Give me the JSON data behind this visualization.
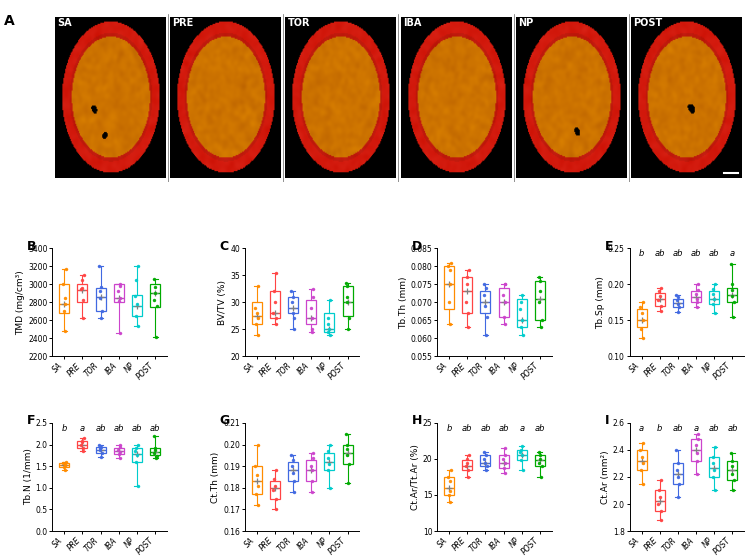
{
  "groups": [
    "SA",
    "PRE",
    "TOR",
    "IBA",
    "NP",
    "POST"
  ],
  "colors": [
    "#FF8C00",
    "#FF4444",
    "#4169E1",
    "#CC44CC",
    "#00CCCC",
    "#00AA00"
  ],
  "panel_A_labels": [
    "SA",
    "PRE",
    "TOR",
    "IBA",
    "NP",
    "POST"
  ],
  "panel_B": {
    "title": "B",
    "ylabel": "TMD (mg/cm³)",
    "ylim": [
      2200,
      3400
    ],
    "yticks": [
      2200,
      2400,
      2600,
      2800,
      3000,
      3200,
      3400
    ],
    "boxes": [
      {
        "q1": 2680,
        "median": 2780,
        "q3": 3000,
        "whislo": 2480,
        "whishi": 3170,
        "mean": 2780
      },
      {
        "q1": 2800,
        "median": 2940,
        "q3": 3000,
        "whislo": 2620,
        "whishi": 3100,
        "mean": 2940
      },
      {
        "q1": 2700,
        "median": 2860,
        "q3": 2960,
        "whislo": 2620,
        "whishi": 3200,
        "mean": 2860
      },
      {
        "q1": 2800,
        "median": 2850,
        "q3": 3000,
        "whislo": 2460,
        "whishi": 3000,
        "mean": 2850
      },
      {
        "q1": 2650,
        "median": 2760,
        "q3": 2880,
        "whislo": 2540,
        "whishi": 3200,
        "mean": 2760
      },
      {
        "q1": 2750,
        "median": 2900,
        "q3": 3000,
        "whislo": 2420,
        "whishi": 3060,
        "mean": 2900
      }
    ],
    "sig": [
      "",
      "",
      "",
      "",
      "",
      ""
    ],
    "pts": [
      [
        2480,
        2700,
        2780,
        2850,
        3000,
        3170
      ],
      [
        2620,
        2820,
        2950,
        2960,
        3050,
        3100
      ],
      [
        2630,
        2700,
        2850,
        2920,
        2970,
        3200
      ],
      [
        2460,
        2810,
        2850,
        2920,
        2980,
        3000
      ],
      [
        2540,
        2650,
        2780,
        2870,
        3050,
        3200
      ],
      [
        2420,
        2760,
        2830,
        2900,
        2970,
        3060
      ]
    ]
  },
  "panel_C": {
    "title": "C",
    "ylabel": "BV/TV (%)",
    "ylim": [
      20,
      40
    ],
    "yticks": [
      20,
      25,
      30,
      35,
      40
    ],
    "boxes": [
      {
        "q1": 26,
        "median": 27.5,
        "q3": 30,
        "whislo": 24,
        "whishi": 33,
        "mean": 27.5
      },
      {
        "q1": 27,
        "median": 28,
        "q3": 32,
        "whislo": 26,
        "whishi": 35.5,
        "mean": 28
      },
      {
        "q1": 28,
        "median": 29,
        "q3": 31,
        "whislo": 25,
        "whishi": 32,
        "mean": 29
      },
      {
        "q1": 26,
        "median": 27,
        "q3": 30.5,
        "whislo": 24.5,
        "whishi": 32.5,
        "mean": 27
      },
      {
        "q1": 24.5,
        "median": 25,
        "q3": 28,
        "whislo": 24,
        "whishi": 30.5,
        "mean": 25
      },
      {
        "q1": 27.5,
        "median": 30,
        "q3": 33,
        "whislo": 25,
        "whishi": 33.5,
        "mean": 30
      }
    ],
    "sig": [
      "",
      "",
      "",
      "",
      "",
      ""
    ],
    "pts": [
      [
        24,
        26,
        27,
        28,
        29,
        33
      ],
      [
        26,
        27,
        28,
        30,
        32,
        35.5
      ],
      [
        25,
        27,
        28,
        30,
        31,
        32
      ],
      [
        24.5,
        25,
        27,
        29,
        31,
        32.5
      ],
      [
        24,
        24.5,
        25,
        26,
        27,
        30.5
      ],
      [
        25,
        27,
        30,
        31,
        33,
        33.5
      ]
    ]
  },
  "panel_D": {
    "title": "D",
    "ylabel": "Tb.Th (mm)",
    "ylim": [
      0.055,
      0.085
    ],
    "yticks": [
      0.055,
      0.06,
      0.065,
      0.07,
      0.075,
      0.08,
      0.085
    ],
    "boxes": [
      {
        "q1": 0.068,
        "median": 0.075,
        "q3": 0.08,
        "whislo": 0.064,
        "whishi": 0.081,
        "mean": 0.075
      },
      {
        "q1": 0.067,
        "median": 0.073,
        "q3": 0.077,
        "whislo": 0.063,
        "whishi": 0.079,
        "mean": 0.073
      },
      {
        "q1": 0.067,
        "median": 0.07,
        "q3": 0.073,
        "whislo": 0.061,
        "whishi": 0.075,
        "mean": 0.07
      },
      {
        "q1": 0.066,
        "median": 0.07,
        "q3": 0.074,
        "whislo": 0.064,
        "whishi": 0.075,
        "mean": 0.07
      },
      {
        "q1": 0.063,
        "median": 0.065,
        "q3": 0.071,
        "whislo": 0.061,
        "whishi": 0.072,
        "mean": 0.065
      },
      {
        "q1": 0.065,
        "median": 0.071,
        "q3": 0.076,
        "whislo": 0.063,
        "whishi": 0.077,
        "mean": 0.071
      }
    ],
    "sig": [
      "",
      "",
      "",
      "",
      "",
      ""
    ],
    "pts": [
      [
        0.064,
        0.07,
        0.075,
        0.079,
        0.08,
        0.081
      ],
      [
        0.063,
        0.067,
        0.07,
        0.075,
        0.077,
        0.079
      ],
      [
        0.061,
        0.066,
        0.069,
        0.072,
        0.074,
        0.075
      ],
      [
        0.064,
        0.066,
        0.07,
        0.072,
        0.075,
        0.075
      ],
      [
        0.061,
        0.063,
        0.065,
        0.068,
        0.07,
        0.072
      ],
      [
        0.063,
        0.065,
        0.07,
        0.073,
        0.076,
        0.077
      ]
    ]
  },
  "panel_E": {
    "title": "E",
    "ylabel": "Tb.Sp (mm)",
    "ylim": [
      0.1,
      0.25
    ],
    "yticks": [
      0.1,
      0.15,
      0.2,
      0.25
    ],
    "boxes": [
      {
        "q1": 0.14,
        "median": 0.15,
        "q3": 0.165,
        "whislo": 0.125,
        "whishi": 0.175,
        "mean": 0.15
      },
      {
        "q1": 0.17,
        "median": 0.18,
        "q3": 0.188,
        "whislo": 0.163,
        "whishi": 0.195,
        "mean": 0.18
      },
      {
        "q1": 0.168,
        "median": 0.174,
        "q3": 0.18,
        "whislo": 0.162,
        "whishi": 0.185,
        "mean": 0.174
      },
      {
        "q1": 0.175,
        "median": 0.182,
        "q3": 0.19,
        "whislo": 0.168,
        "whishi": 0.2,
        "mean": 0.182
      },
      {
        "q1": 0.172,
        "median": 0.18,
        "q3": 0.19,
        "whislo": 0.16,
        "whishi": 0.2,
        "mean": 0.18
      },
      {
        "q1": 0.175,
        "median": 0.185,
        "q3": 0.195,
        "whislo": 0.155,
        "whishi": 0.228,
        "mean": 0.185
      }
    ],
    "sig": [
      "b",
      "ab",
      "ab",
      "ab",
      "ab",
      "a"
    ],
    "pts": [
      [
        0.125,
        0.138,
        0.15,
        0.16,
        0.168,
        0.175
      ],
      [
        0.163,
        0.17,
        0.178,
        0.183,
        0.19,
        0.195
      ],
      [
        0.162,
        0.168,
        0.173,
        0.178,
        0.182,
        0.185
      ],
      [
        0.168,
        0.175,
        0.18,
        0.187,
        0.192,
        0.2
      ],
      [
        0.16,
        0.172,
        0.18,
        0.187,
        0.193,
        0.2
      ],
      [
        0.155,
        0.175,
        0.183,
        0.192,
        0.2,
        0.228
      ]
    ]
  },
  "panel_F": {
    "title": "F",
    "ylabel": "Tb.N (1/mm)",
    "ylim": [
      0.0,
      2.5
    ],
    "yticks": [
      0.0,
      0.5,
      1.0,
      1.5,
      2.0,
      2.5
    ],
    "boxes": [
      {
        "q1": 1.47,
        "median": 1.52,
        "q3": 1.57,
        "whislo": 1.42,
        "whishi": 1.6,
        "mean": 1.52
      },
      {
        "q1": 1.92,
        "median": 2.0,
        "q3": 2.08,
        "whislo": 1.85,
        "whishi": 2.15,
        "mean": 2.0
      },
      {
        "q1": 1.8,
        "median": 1.88,
        "q3": 1.94,
        "whislo": 1.72,
        "whishi": 2.0,
        "mean": 1.88
      },
      {
        "q1": 1.78,
        "median": 1.85,
        "q3": 1.93,
        "whislo": 1.7,
        "whishi": 1.98,
        "mean": 1.85
      },
      {
        "q1": 1.6,
        "median": 1.78,
        "q3": 1.92,
        "whislo": 1.05,
        "whishi": 1.98,
        "mean": 1.78
      },
      {
        "q1": 1.75,
        "median": 1.82,
        "q3": 1.92,
        "whislo": 1.68,
        "whishi": 2.2,
        "mean": 1.82
      }
    ],
    "sig": [
      "b",
      "a",
      "ab",
      "ab",
      "ab",
      "ab"
    ],
    "pts": [
      [
        1.42,
        1.47,
        1.5,
        1.54,
        1.57,
        1.6
      ],
      [
        1.85,
        1.93,
        2.0,
        2.05,
        2.08,
        2.15
      ],
      [
        1.72,
        1.8,
        1.87,
        1.91,
        1.95,
        2.0
      ],
      [
        1.7,
        1.78,
        1.83,
        1.88,
        1.95,
        1.98
      ],
      [
        1.05,
        1.6,
        1.75,
        1.85,
        1.93,
        1.98
      ],
      [
        1.68,
        1.74,
        1.8,
        1.87,
        1.93,
        2.2
      ]
    ]
  },
  "panel_G": {
    "title": "G",
    "ylabel": "Ct.Th (mm)",
    "ylim": [
      0.16,
      0.21
    ],
    "yticks": [
      0.16,
      0.17,
      0.18,
      0.19,
      0.2,
      0.21
    ],
    "boxes": [
      {
        "q1": 0.177,
        "median": 0.183,
        "q3": 0.19,
        "whislo": 0.172,
        "whishi": 0.2,
        "mean": 0.183
      },
      {
        "q1": 0.175,
        "median": 0.18,
        "q3": 0.183,
        "whislo": 0.17,
        "whishi": 0.188,
        "mean": 0.18
      },
      {
        "q1": 0.183,
        "median": 0.188,
        "q3": 0.192,
        "whislo": 0.178,
        "whishi": 0.195,
        "mean": 0.188
      },
      {
        "q1": 0.183,
        "median": 0.188,
        "q3": 0.193,
        "whislo": 0.178,
        "whishi": 0.196,
        "mean": 0.188
      },
      {
        "q1": 0.188,
        "median": 0.192,
        "q3": 0.196,
        "whislo": 0.18,
        "whishi": 0.2,
        "mean": 0.192
      },
      {
        "q1": 0.191,
        "median": 0.196,
        "q3": 0.2,
        "whislo": 0.182,
        "whishi": 0.205,
        "mean": 0.196
      }
    ],
    "sig": [
      "",
      "",
      "",
      "",
      "",
      ""
    ],
    "pts": [
      [
        0.172,
        0.177,
        0.181,
        0.186,
        0.19,
        0.2
      ],
      [
        0.17,
        0.175,
        0.179,
        0.181,
        0.184,
        0.188
      ],
      [
        0.178,
        0.183,
        0.187,
        0.19,
        0.193,
        0.195
      ],
      [
        0.178,
        0.183,
        0.188,
        0.19,
        0.194,
        0.196
      ],
      [
        0.18,
        0.188,
        0.191,
        0.194,
        0.197,
        0.2
      ],
      [
        0.182,
        0.191,
        0.195,
        0.198,
        0.2,
        0.205
      ]
    ]
  },
  "panel_H": {
    "title": "H",
    "ylabel": "Ct.Ar/Tt.Ar (%)",
    "ylim": [
      10,
      25
    ],
    "yticks": [
      10,
      15,
      20,
      25
    ],
    "boxes": [
      {
        "q1": 15.0,
        "median": 16.0,
        "q3": 17.5,
        "whislo": 14.0,
        "whishi": 18.5,
        "mean": 16.0
      },
      {
        "q1": 18.5,
        "median": 19.0,
        "q3": 19.8,
        "whislo": 17.5,
        "whishi": 20.5,
        "mean": 19.0
      },
      {
        "q1": 19.0,
        "median": 19.5,
        "q3": 20.5,
        "whislo": 18.5,
        "whishi": 21.0,
        "mean": 19.5
      },
      {
        "q1": 18.8,
        "median": 19.5,
        "q3": 20.5,
        "whislo": 18.0,
        "whishi": 21.5,
        "mean": 19.5
      },
      {
        "q1": 19.8,
        "median": 20.5,
        "q3": 21.2,
        "whislo": 18.5,
        "whishi": 21.8,
        "mean": 20.5
      },
      {
        "q1": 19.0,
        "median": 19.8,
        "q3": 20.5,
        "whislo": 17.5,
        "whishi": 21.0,
        "mean": 19.8
      }
    ],
    "sig": [
      "b",
      "ab",
      "ab",
      "ab",
      "a",
      "ab"
    ],
    "pts": [
      [
        14.0,
        15.0,
        15.5,
        17.0,
        17.5,
        18.5
      ],
      [
        17.5,
        18.5,
        19.0,
        19.5,
        20.0,
        20.5
      ],
      [
        18.5,
        19.0,
        19.5,
        20.0,
        20.5,
        21.0
      ],
      [
        18.0,
        18.8,
        19.5,
        20.0,
        20.5,
        21.5
      ],
      [
        18.5,
        19.8,
        20.5,
        21.0,
        21.2,
        21.8
      ],
      [
        17.5,
        19.0,
        19.5,
        20.0,
        20.5,
        21.0
      ]
    ]
  },
  "panel_I": {
    "title": "I",
    "ylabel": "Ct.Ar (mm²)",
    "ylim": [
      1.8,
      2.6
    ],
    "yticks": [
      1.8,
      2.0,
      2.2,
      2.4,
      2.6
    ],
    "boxes": [
      {
        "q1": 2.25,
        "median": 2.32,
        "q3": 2.4,
        "whislo": 2.15,
        "whishi": 2.45,
        "mean": 2.32
      },
      {
        "q1": 1.95,
        "median": 2.02,
        "q3": 2.1,
        "whislo": 1.88,
        "whishi": 2.18,
        "mean": 2.02
      },
      {
        "q1": 2.15,
        "median": 2.22,
        "q3": 2.3,
        "whislo": 2.05,
        "whishi": 2.4,
        "mean": 2.22
      },
      {
        "q1": 2.32,
        "median": 2.4,
        "q3": 2.48,
        "whislo": 2.22,
        "whishi": 2.52,
        "mean": 2.4
      },
      {
        "q1": 2.2,
        "median": 2.27,
        "q3": 2.35,
        "whislo": 2.1,
        "whishi": 2.42,
        "mean": 2.27
      },
      {
        "q1": 2.18,
        "median": 2.25,
        "q3": 2.32,
        "whislo": 2.1,
        "whishi": 2.38,
        "mean": 2.25
      }
    ],
    "sig": [
      "a",
      "b",
      "ab",
      "a",
      "ab",
      "ab"
    ],
    "pts": [
      [
        2.15,
        2.25,
        2.3,
        2.35,
        2.4,
        2.45
      ],
      [
        1.88,
        1.95,
        2.0,
        2.05,
        2.1,
        2.18
      ],
      [
        2.05,
        2.15,
        2.2,
        2.25,
        2.3,
        2.4
      ],
      [
        2.22,
        2.32,
        2.38,
        2.44,
        2.48,
        2.52
      ],
      [
        2.1,
        2.2,
        2.25,
        2.3,
        2.35,
        2.42
      ],
      [
        2.1,
        2.18,
        2.22,
        2.28,
        2.32,
        2.38
      ]
    ]
  },
  "background_color": "#ffffff",
  "fig_label_fontsize": 9,
  "axis_fontsize": 6.5,
  "tick_fontsize": 5.5
}
